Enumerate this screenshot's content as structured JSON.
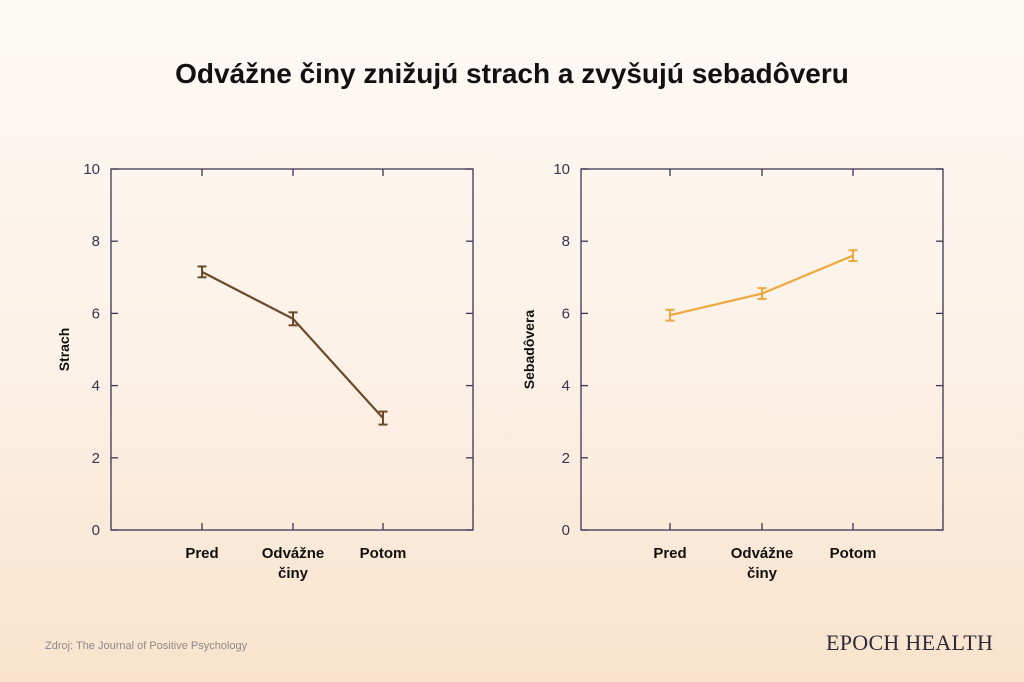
{
  "title": "Odvážne činy znižujú strach a zvyšujú sebadôveru",
  "source": "Zdroj: The Journal of Positive Psychology",
  "brand": "EPOCH HEALTH",
  "chart_data": [
    {
      "type": "line",
      "categories": [
        "Pred",
        "Odvážne\nčiny",
        "Potom"
      ],
      "ylabel": "Strach",
      "ylim": [
        0,
        10
      ],
      "yticks": [
        0,
        2,
        4,
        6,
        8,
        10
      ],
      "color": "#6b4a2a",
      "series": [
        {
          "values": [
            7.15,
            5.85,
            3.1
          ],
          "error": [
            0.15,
            0.18,
            0.18
          ]
        }
      ]
    },
    {
      "type": "line",
      "categories": [
        "Pred",
        "Odvážne\nčiny",
        "Potom"
      ],
      "ylabel": "Sebadôvera",
      "ylim": [
        0,
        10
      ],
      "yticks": [
        0,
        2,
        4,
        6,
        8,
        10
      ],
      "color": "#eea83e",
      "series": [
        {
          "values": [
            5.95,
            6.55,
            7.6
          ],
          "error": [
            0.15,
            0.15,
            0.15
          ]
        }
      ]
    }
  ]
}
